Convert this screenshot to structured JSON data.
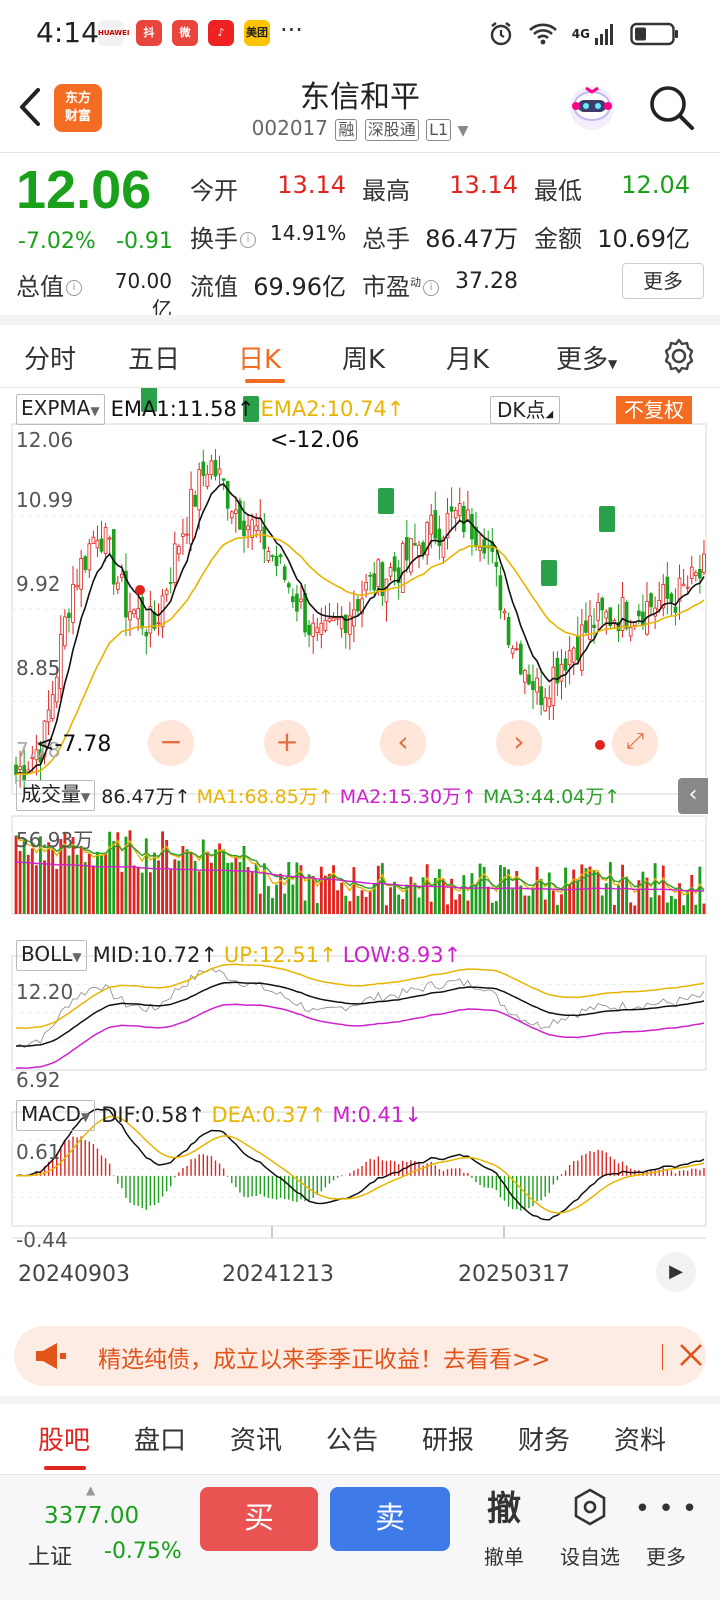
{
  "status_bar": {
    "time": "4:14",
    "apps": [
      "HUAWEI",
      "Douyin",
      "Weibo",
      "NetEase Music",
      "美团"
    ],
    "more": "···",
    "network": "4G",
    "icons": [
      "alarm-icon",
      "wifi-icon",
      "signal-icon",
      "battery-icon"
    ]
  },
  "header": {
    "logo_line1": "东方",
    "logo_line2": "财富",
    "stock_name": "东信和平",
    "stock_code": "002017",
    "tags": [
      "融",
      "深股通",
      "L1"
    ]
  },
  "quote": {
    "price": "12.06",
    "change_pct": "-7.02%",
    "change_abs": "-0.91",
    "rows": [
      [
        {
          "label": "今开",
          "value": "13.14",
          "color": "red"
        },
        {
          "label": "最高",
          "value": "13.14",
          "color": "red"
        },
        {
          "label": "最低",
          "value": "12.04",
          "color": "green"
        }
      ],
      [
        {
          "label": "换手",
          "value": "14.91%",
          "color": "dark"
        },
        {
          "label": "总手",
          "value": "86.47万",
          "color": "dark"
        },
        {
          "label": "金额",
          "value": "10.69亿",
          "color": "dark"
        }
      ],
      [
        {
          "label": "总值",
          "value": "70.00亿",
          "color": "dark"
        },
        {
          "label": "流值",
          "value": "69.96亿",
          "color": "dark"
        },
        {
          "label": "市盈",
          "value": "37.28",
          "color": "dark"
        }
      ]
    ],
    "pe_superscript": "动",
    "more_label": "更多"
  },
  "period_tabs": {
    "items": [
      "分时",
      "五日",
      "日K",
      "周K",
      "月K",
      "更多"
    ],
    "active": "日K"
  },
  "kline": {
    "indicator": "EXPMA",
    "ema1": "EMA1:11.58↑",
    "ema2": "EMA2:10.74↑",
    "dk_label": "DK点",
    "fq_label": "不复权",
    "y_labels": [
      "12.06",
      "10.99",
      "9.92",
      "8.85",
      "7.78"
    ],
    "high_mark": "<-12.06",
    "low_mark": "<-7.78",
    "nine_marker": "9"
  },
  "volume": {
    "indicator": "成交量",
    "vol": "86.47万↑",
    "ma1": "MA1:68.85万↑",
    "ma2": "MA2:15.30万↑",
    "ma3": "MA3:44.04万↑",
    "y_label": "56.93万"
  },
  "boll": {
    "indicator": "BOLL",
    "mid": "MID:10.72↑",
    "up": "UP:12.51↑",
    "low": "LOW:8.93↑",
    "y_top": "12.20",
    "y_bottom": "6.92"
  },
  "macd": {
    "indicator": "MACD",
    "dif": "DIF:0.58↑",
    "dea": "DEA:0.37↑",
    "m": "M:0.41↓",
    "y_top": "0.61",
    "y_bottom": "-0.44"
  },
  "dates": [
    "20240903",
    "20241213",
    "20250317"
  ],
  "ad": {
    "text": "精选纯债，成立以来季季正收益！去看看>>"
  },
  "bottom_tabs": {
    "items": [
      "股吧",
      "盘口",
      "资讯",
      "公告",
      "研报",
      "财务",
      "资料"
    ],
    "active": "股吧"
  },
  "trade_bar": {
    "index_value": "3377.00",
    "index_name": "上证",
    "index_change": "-0.75%",
    "buy": "买",
    "sell": "卖",
    "cancel_icon": "撤",
    "cancel_label": "撤单",
    "watch_label": "设自选",
    "more_label": "更多"
  },
  "colors": {
    "up_red": "#e0241f",
    "down_green": "#1aa01a",
    "brand_orange": "#f36c21",
    "ema1_black": "#111111",
    "ema2_yellow": "#e8b400",
    "ma2_magenta": "#cc22cc",
    "ma3_green": "#2aa02a",
    "sell_blue": "#3f7be8",
    "buy_red": "#e95352"
  }
}
